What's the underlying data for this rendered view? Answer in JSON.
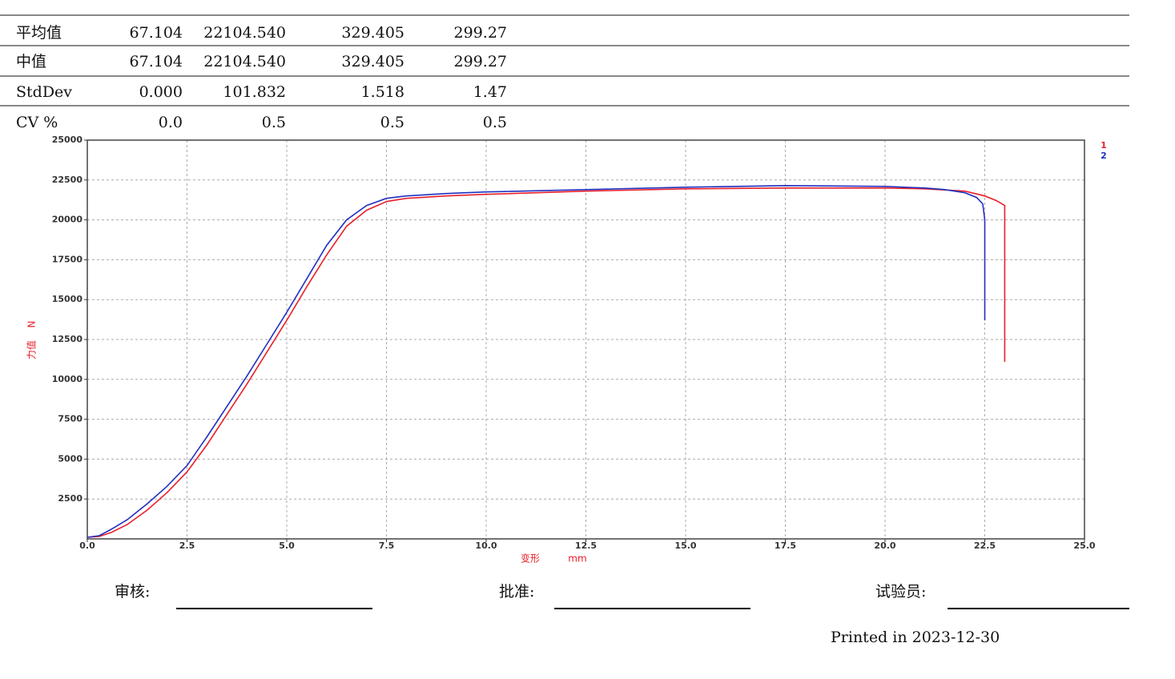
{
  "table": {
    "rows": [
      [
        "平均值",
        "67.104",
        "22104.540",
        "329.405",
        "299.27"
      ],
      [
        "中值",
        "67.104",
        "22104.540",
        "329.405",
        "299.27"
      ],
      [
        "StdDev",
        "0.000",
        "101.832",
        "1.518",
        "1.47"
      ],
      [
        "CV %",
        "0.0",
        "0.5",
        "0.5",
        "0.5"
      ]
    ]
  },
  "chart_data": {
    "type": "line",
    "ylabel": "力值",
    "yunit": "N",
    "xlabel": "变形",
    "xunit": "mm",
    "xlim": [
      0,
      25
    ],
    "ylim": [
      0,
      25000
    ],
    "xticks": [
      {
        "value": 0,
        "label": "0.0"
      },
      2.5,
      {
        "value": 5,
        "label": "5.0"
      },
      7.5,
      {
        "value": 10,
        "label": "10.0"
      },
      12.5,
      {
        "value": 15,
        "label": "15.0"
      },
      17.5,
      {
        "value": 20,
        "label": "20.0"
      },
      22.5,
      {
        "value": 25,
        "label": "25.0"
      }
    ],
    "yticks": [
      2500,
      5000,
      7500,
      10000,
      12500,
      15000,
      17500,
      20000,
      22500,
      25000
    ],
    "grid": true,
    "series": [
      {
        "name": "1",
        "color": "#e8202a",
        "x": [
          0,
          0.3,
          0.6,
          1,
          1.5,
          2,
          2.5,
          3,
          3.5,
          4,
          4.5,
          5,
          5.5,
          6,
          6.5,
          7,
          7.5,
          8,
          9,
          10,
          12.5,
          15,
          17.5,
          20,
          21,
          22,
          22.5,
          22.8,
          23,
          23,
          23
        ],
        "values": [
          100,
          150,
          400,
          900,
          1800,
          2900,
          4200,
          5900,
          7800,
          9700,
          11700,
          13700,
          15800,
          17800,
          19600,
          20600,
          21150,
          21350,
          21500,
          21600,
          21800,
          21950,
          22000,
          22000,
          21950,
          21800,
          21500,
          21200,
          20900,
          20700,
          11100
        ]
      },
      {
        "name": "2",
        "color": "#2030c0",
        "x": [
          0,
          0.3,
          0.6,
          1,
          1.5,
          2,
          2.5,
          3,
          3.5,
          4,
          4.5,
          5,
          5.5,
          6,
          6.5,
          7,
          7.5,
          8,
          9,
          10,
          12.5,
          15,
          17.5,
          20,
          21,
          21.5,
          22,
          22.3,
          22.45,
          22.5,
          22.5
        ],
        "values": [
          100,
          200,
          600,
          1200,
          2200,
          3300,
          4600,
          6400,
          8300,
          10200,
          12200,
          14200,
          16300,
          18400,
          20000,
          20900,
          21350,
          21500,
          21650,
          21750,
          21900,
          22050,
          22150,
          22100,
          22000,
          21900,
          21700,
          21400,
          21000,
          20000,
          13700
        ]
      }
    ]
  },
  "footer": {
    "reviewer": "审核:",
    "approver": "批准:",
    "tester": "试验员:",
    "printed": "Printed in 2023-12-30"
  }
}
